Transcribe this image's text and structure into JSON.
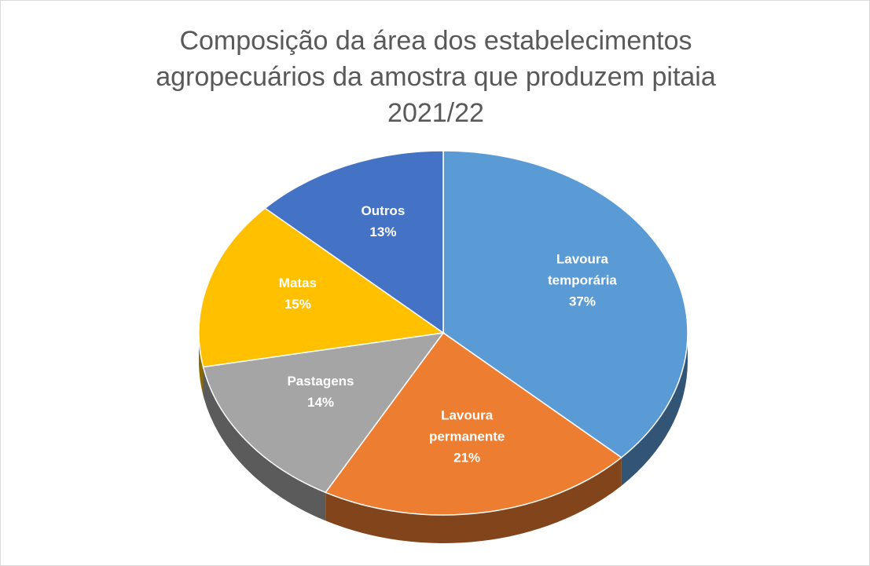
{
  "chart_data": {
    "type": "pie",
    "title": "Composição da área dos estabelecimentos\nagropecuários da amostra que produzem pitaia\n2021/22",
    "categories": [
      "Lavoura temporária",
      "Lavoura permanente",
      "Pastagens",
      "Matas",
      "Outros"
    ],
    "values": [
      37,
      21,
      14,
      15,
      13
    ],
    "value_labels": [
      "37%",
      "21%",
      "14%",
      "15%",
      "13%"
    ],
    "colors": [
      "#5b9bd5",
      "#ed7d31",
      "#a5a5a5",
      "#ffc000",
      "#4472c4"
    ]
  }
}
